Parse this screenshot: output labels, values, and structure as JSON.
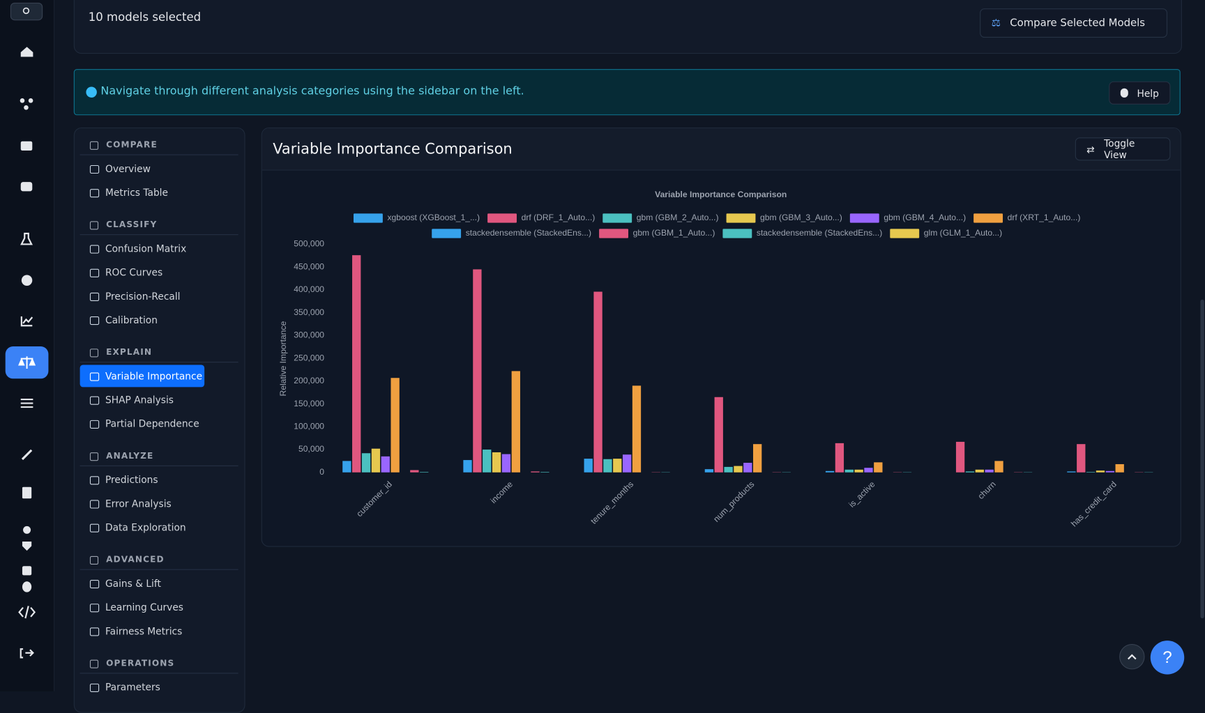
{
  "header": {
    "selection": "10 models selected",
    "compare_button": "Compare Selected Models"
  },
  "info_banner": {
    "text": "Navigate through different analysis categories using the sidebar on the left.",
    "help_button": "Help"
  },
  "sidebar": {
    "sections": [
      {
        "title": "COMPARE",
        "items": [
          {
            "label": "Overview"
          },
          {
            "label": "Metrics Table"
          }
        ]
      },
      {
        "title": "CLASSIFY",
        "items": [
          {
            "label": "Confusion Matrix"
          },
          {
            "label": "ROC Curves"
          },
          {
            "label": "Precision-Recall"
          },
          {
            "label": "Calibration"
          }
        ]
      },
      {
        "title": "EXPLAIN",
        "items": [
          {
            "label": "Variable Importance",
            "active": true
          },
          {
            "label": "SHAP Analysis"
          },
          {
            "label": "Partial Dependence"
          }
        ]
      },
      {
        "title": "ANALYZE",
        "items": [
          {
            "label": "Predictions"
          },
          {
            "label": "Error Analysis"
          },
          {
            "label": "Data Exploration"
          }
        ]
      },
      {
        "title": "ADVANCED",
        "items": [
          {
            "label": "Gains & Lift"
          },
          {
            "label": "Learning Curves"
          },
          {
            "label": "Fairness Metrics"
          }
        ]
      },
      {
        "title": "OPERATIONS",
        "items": [
          {
            "label": "Parameters"
          }
        ]
      }
    ]
  },
  "panel": {
    "title": "Variable Importance Comparison",
    "toggle_button": "Toggle View"
  },
  "help_fab": "?",
  "chart_data": {
    "type": "bar",
    "title": "Variable Importance Comparison",
    "y_label": "Relative Importance",
    "categories": [
      "customer_id",
      "income",
      "tenure_months",
      "num_products",
      "is_active",
      "churn",
      "has_credit_card"
    ],
    "series": [
      {
        "name": "xgboost (XGBoost_1_...)",
        "color": "#36a2eb",
        "values": [
          25000,
          27000,
          30000,
          7000,
          3000,
          0,
          2000
        ]
      },
      {
        "name": "drf (DRF_1_Auto...)",
        "color": "#e0577f",
        "values": [
          476000,
          445000,
          396000,
          165000,
          64000,
          67000,
          62000
        ]
      },
      {
        "name": "gbm (GBM_2_Auto...)",
        "color": "#4bc0c0",
        "values": [
          42000,
          50000,
          29000,
          12000,
          6000,
          2000,
          1000
        ]
      },
      {
        "name": "gbm (GBM_3_Auto...)",
        "color": "#e6c84f",
        "values": [
          52000,
          44000,
          30000,
          14000,
          6000,
          6000,
          4000
        ]
      },
      {
        "name": "gbm (GBM_4_Auto...)",
        "color": "#9966ff",
        "values": [
          35000,
          40000,
          39000,
          21000,
          10000,
          6000,
          3000
        ]
      },
      {
        "name": "drf (XRT_1_Auto...)",
        "color": "#f0a040",
        "values": [
          207000,
          222000,
          190000,
          62000,
          22000,
          25000,
          18000
        ]
      },
      {
        "name": "stackedensemble (StackedEns...)",
        "color": "#36a2eb",
        "values": [
          0,
          0,
          0,
          0,
          0,
          0,
          0
        ]
      },
      {
        "name": "gbm (GBM_1_Auto...)",
        "color": "#e0577f",
        "values": [
          5000,
          2000,
          500,
          500,
          500,
          500,
          500
        ]
      },
      {
        "name": "stackedensemble (StackedEns...)",
        "color": "#4bc0c0",
        "values": [
          1000,
          1000,
          500,
          500,
          500,
          500,
          500
        ]
      },
      {
        "name": "glm (GLM_1_Auto...)",
        "color": "#e6c84f",
        "values": [
          0,
          0,
          0,
          0,
          0,
          0,
          0
        ]
      }
    ],
    "ylim": [
      0,
      500000
    ],
    "yticks": [
      0,
      {
        "value": 50000,
        "label": "50,000"
      },
      {
        "value": 100000,
        "label": "100,000"
      },
      {
        "value": 150000,
        "label": "150,000"
      },
      {
        "value": 200000,
        "label": "200,000"
      },
      {
        "value": 250000,
        "label": "250,000"
      },
      {
        "value": 300000,
        "label": "300,000"
      },
      {
        "value": 350000,
        "label": "350,000"
      },
      {
        "value": 400000,
        "label": "400,000"
      },
      {
        "value": 450000,
        "label": "450,000"
      },
      {
        "value": 500000,
        "label": "500,000"
      }
    ],
    "legend": "top"
  }
}
